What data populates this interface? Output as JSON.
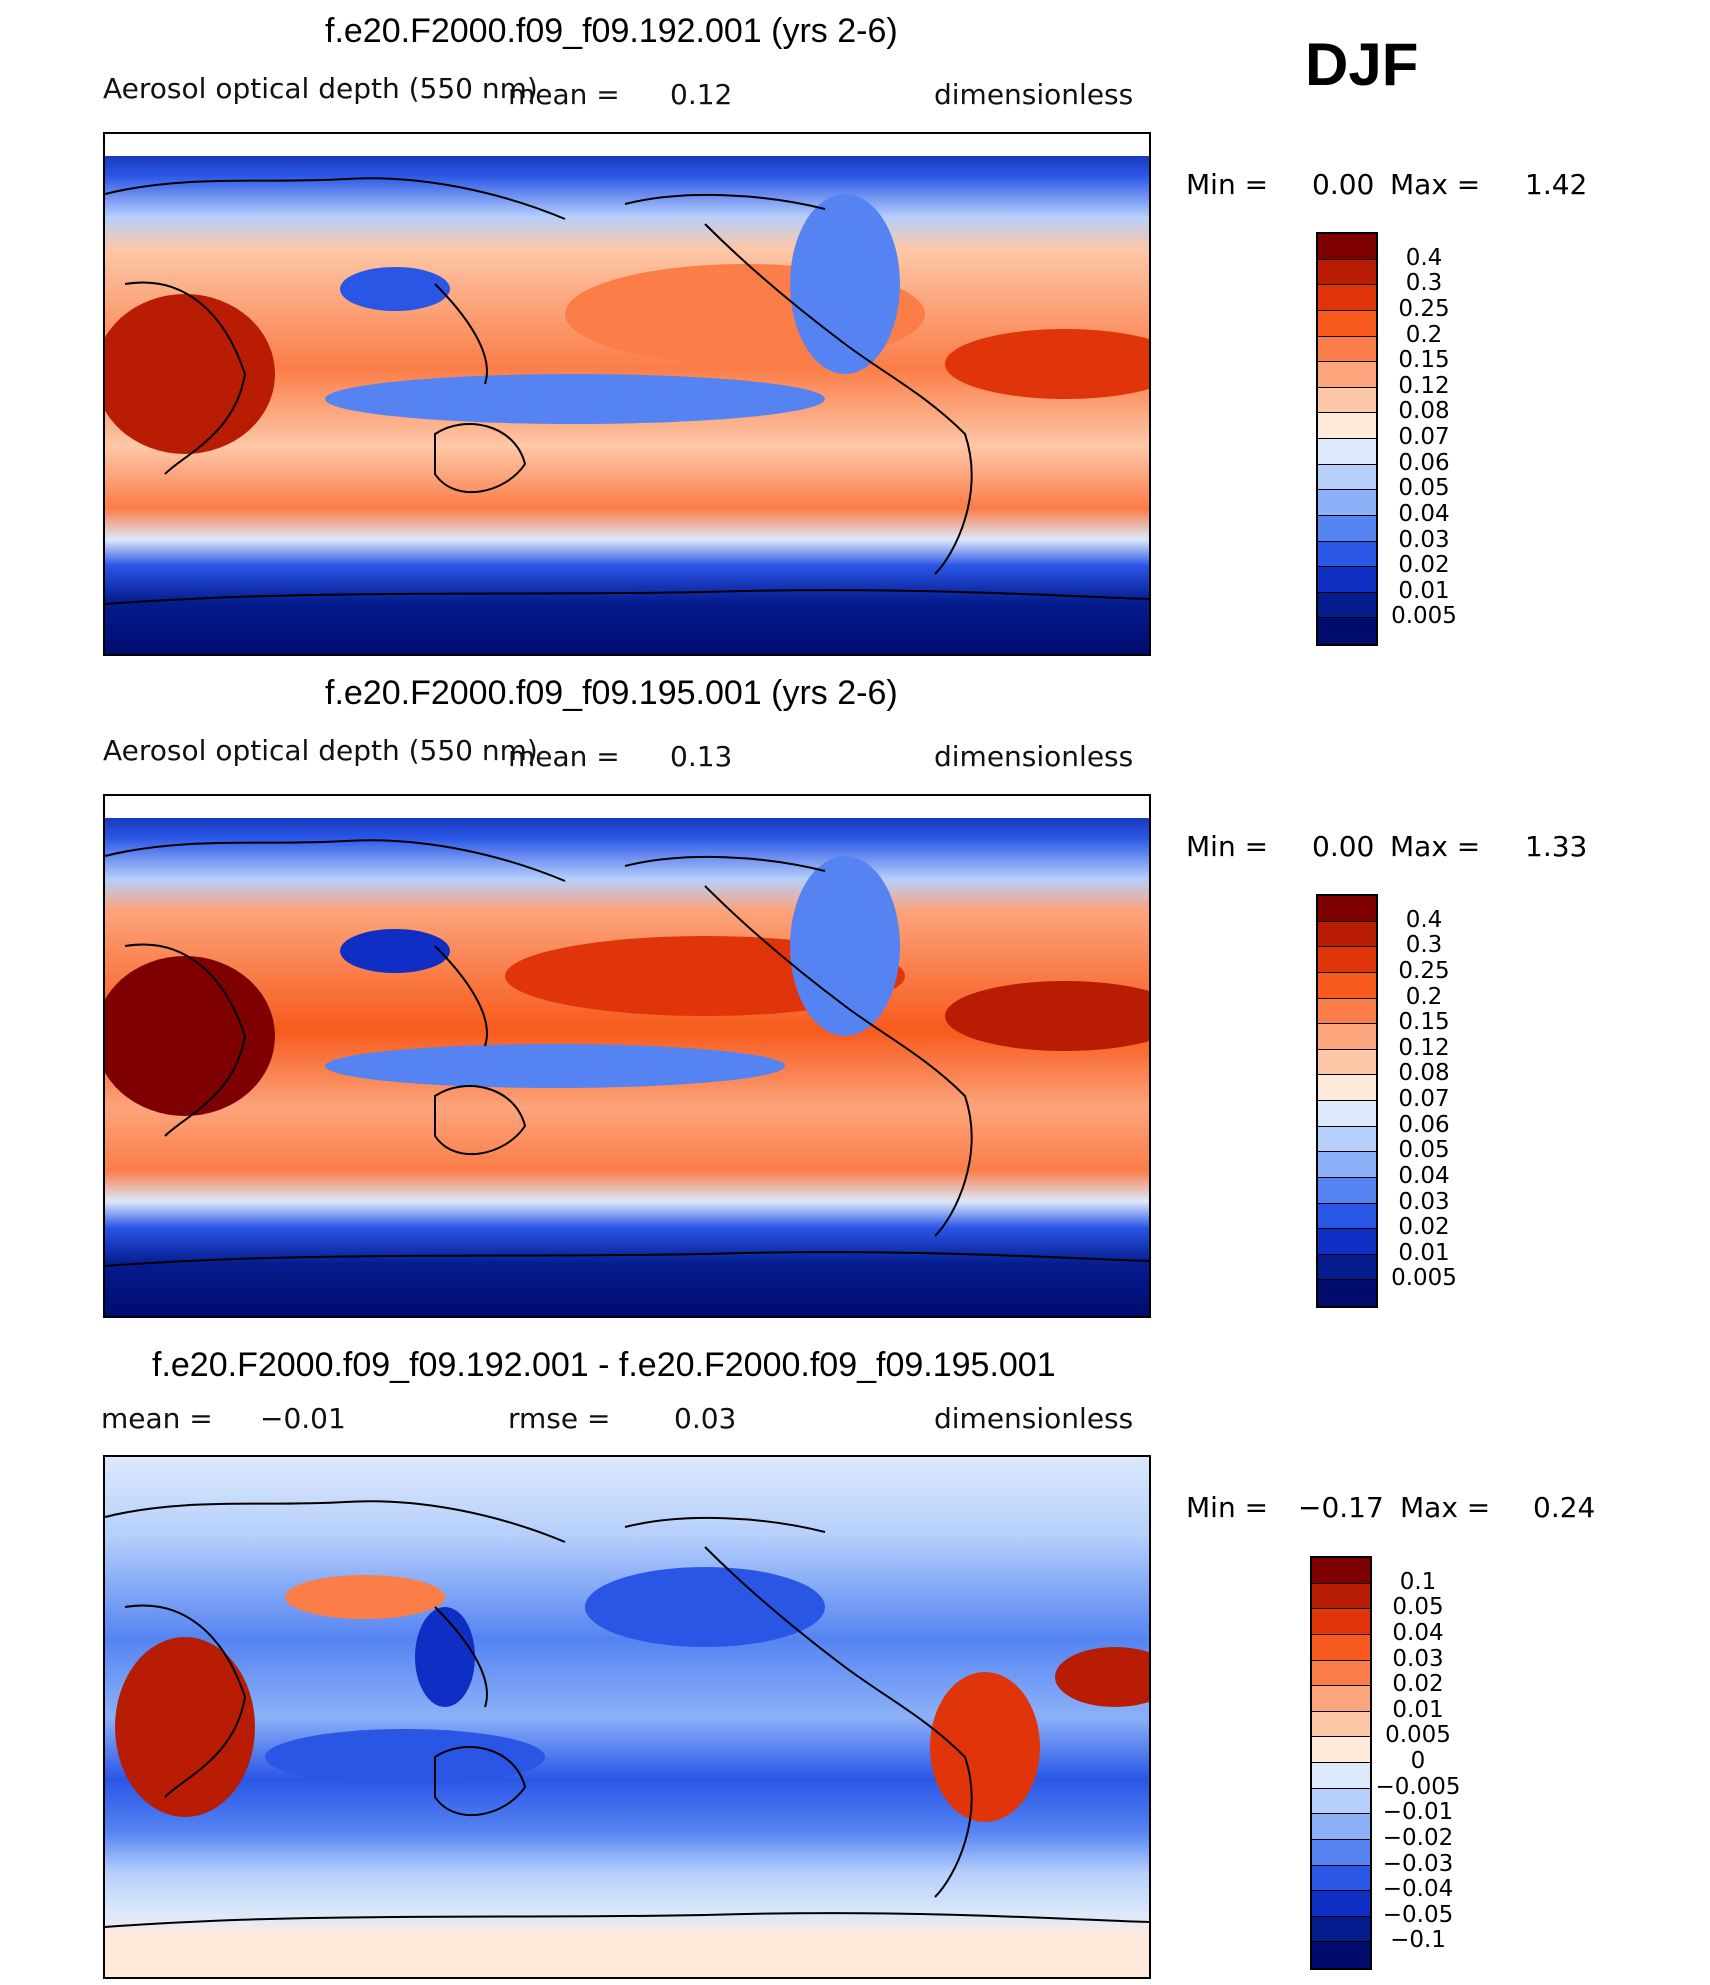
{
  "season": "DJF",
  "panels": [
    {
      "title": "f.e20.F2000.f09_f09.192.001 (yrs 2-6)",
      "variable": "Aerosol optical depth (550 nm)",
      "mean_label": "mean =",
      "mean": "0.12",
      "units": "dimensionless",
      "min_label": "Min =",
      "min": "0.00",
      "max_label": "Max =",
      "max": "1.42",
      "levels": [
        "0.4",
        "0.3",
        "0.25",
        "0.2",
        "0.15",
        "0.12",
        "0.08",
        "0.07",
        "0.06",
        "0.05",
        "0.04",
        "0.03",
        "0.02",
        "0.01",
        "0.005"
      ]
    },
    {
      "title": "f.e20.F2000.f09_f09.195.001 (yrs 2-6)",
      "variable": "Aerosol optical depth (550 nm)",
      "mean_label": "mean =",
      "mean": "0.13",
      "units": "dimensionless",
      "min_label": "Min =",
      "min": "0.00",
      "max_label": "Max =",
      "max": "1.33",
      "levels": [
        "0.4",
        "0.3",
        "0.25",
        "0.2",
        "0.15",
        "0.12",
        "0.08",
        "0.07",
        "0.06",
        "0.05",
        "0.04",
        "0.03",
        "0.02",
        "0.01",
        "0.005"
      ]
    },
    {
      "title": "f.e20.F2000.f09_f09.192.001 - f.e20.F2000.f09_f09.195.001",
      "mean_label": "mean =",
      "mean": "−0.01",
      "rmse_label": "rmse =",
      "rmse": "0.03",
      "units": "dimensionless",
      "min_label": "Min =",
      "min": "−0.17",
      "max_label": "Max =",
      "max": "0.24",
      "levels": [
        "0.1",
        "0.05",
        "0.04",
        "0.03",
        "0.02",
        "0.01",
        "0.005",
        "0",
        "−0.005",
        "−0.01",
        "−0.02",
        "−0.03",
        "−0.04",
        "−0.05",
        "−0.1"
      ]
    }
  ],
  "colors": {
    "abs_scale": [
      "#7f0000",
      "#b81c03",
      "#e0350a",
      "#f75a1c",
      "#fb7d48",
      "#fca47c",
      "#fdc8a8",
      "#feeadb",
      "#dce9fb",
      "#b6cffb",
      "#8cb1f8",
      "#5584f2",
      "#2a56e6",
      "#0f2fc4",
      "#051c8f",
      "#000b6e"
    ],
    "diff_scale": [
      "#7f0000",
      "#b81c03",
      "#e0350a",
      "#f75a1c",
      "#fb7d48",
      "#fca47c",
      "#fdc8a8",
      "#feeadb",
      "#dce9fb",
      "#b6cffb",
      "#8cb1f8",
      "#5584f2",
      "#2a56e6",
      "#0f2fc4",
      "#051c8f",
      "#000b6e"
    ]
  }
}
